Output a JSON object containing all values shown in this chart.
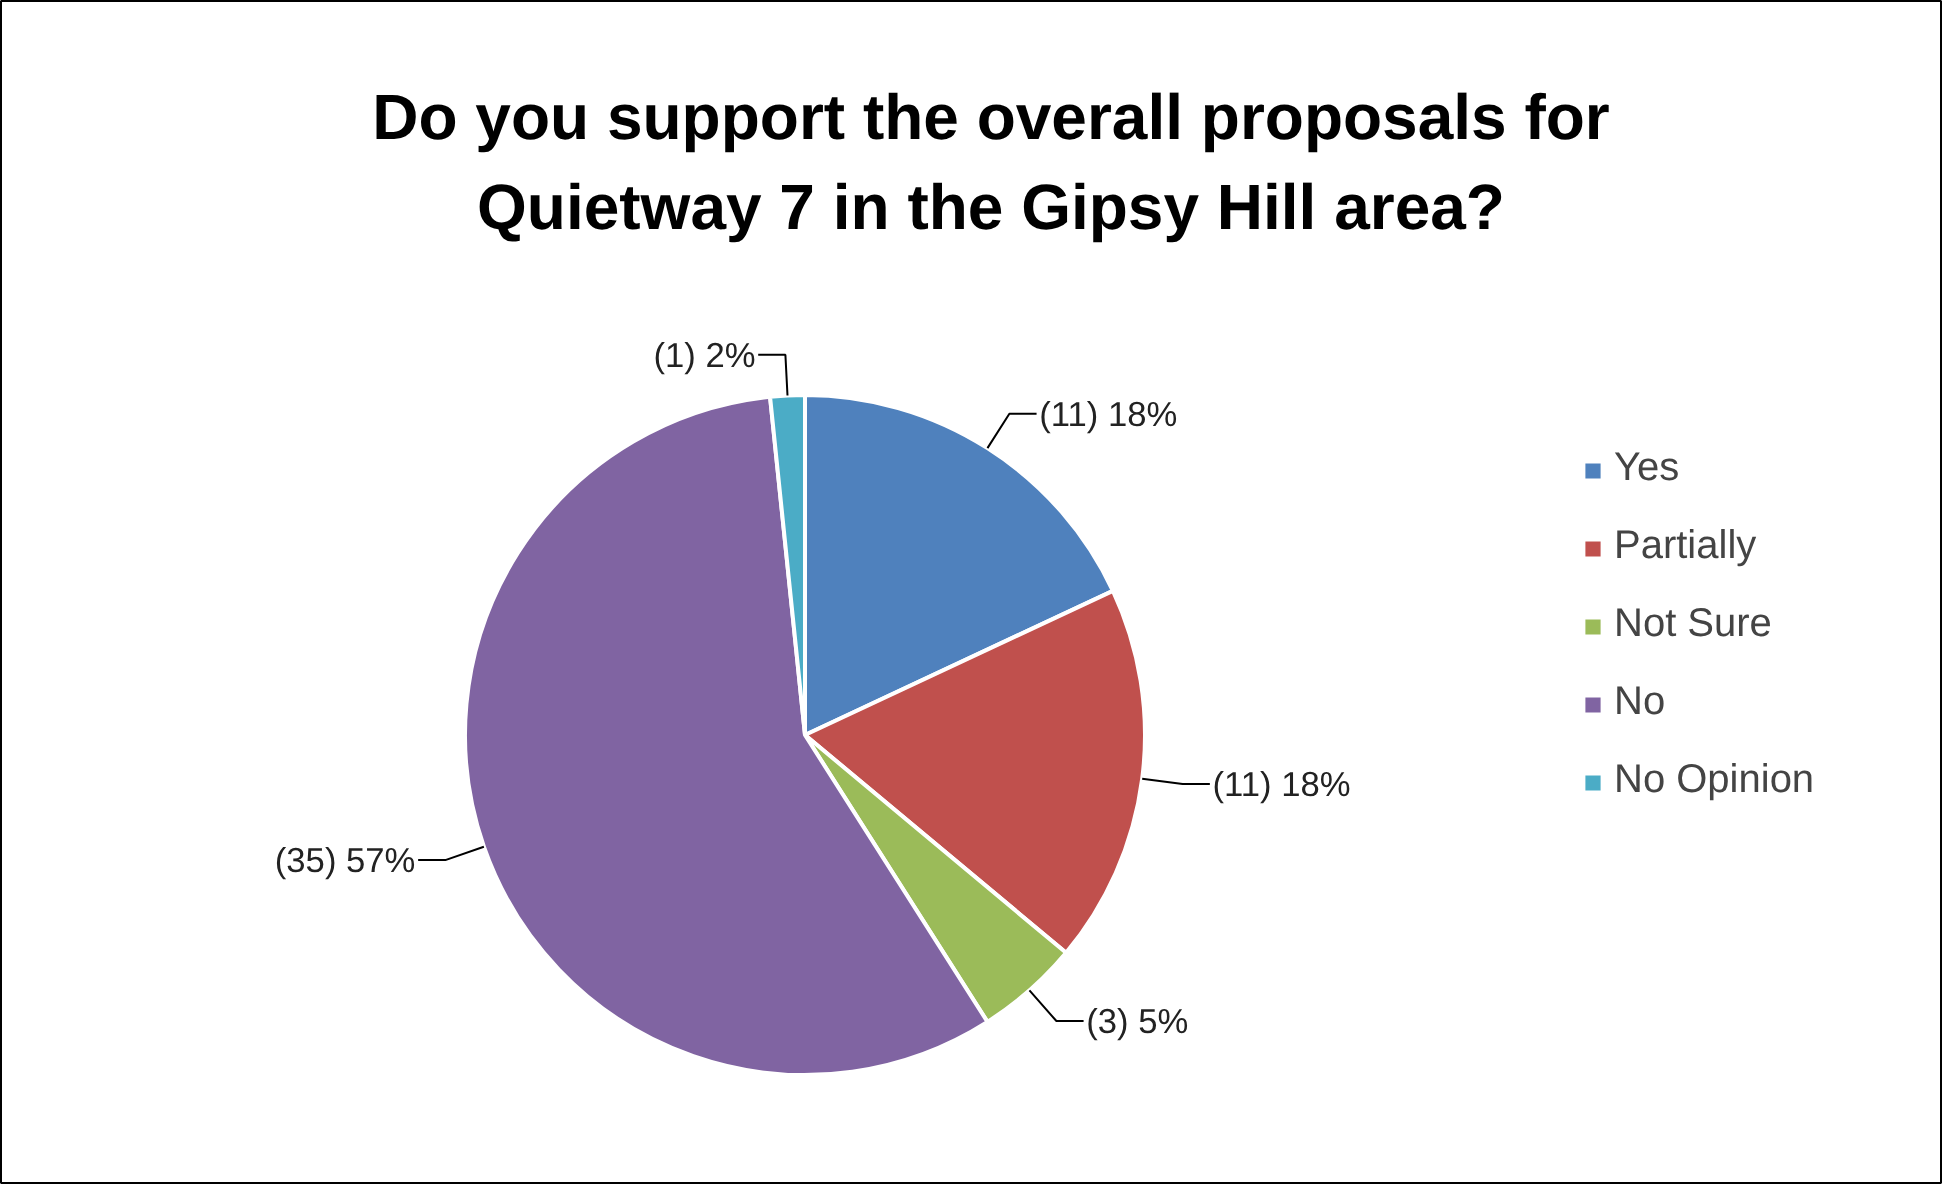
{
  "chart_data": {
    "type": "pie",
    "title": "Do you support the overall proposals for Quietway 7 in the Gipsy Hill area?",
    "categories": [
      "Yes",
      "Partially",
      "Not Sure",
      "No",
      "No Opinion"
    ],
    "values": [
      11,
      11,
      3,
      35,
      1
    ],
    "value_labels": [
      "(11) 18%",
      "(11) 18%",
      "(3) 5%",
      "(35) 57%",
      "(1) 2%"
    ],
    "colors": [
      "#4f81bd",
      "#c0504d",
      "#9bbb59",
      "#8064a2",
      "#4bacc6"
    ],
    "legend": "right"
  }
}
